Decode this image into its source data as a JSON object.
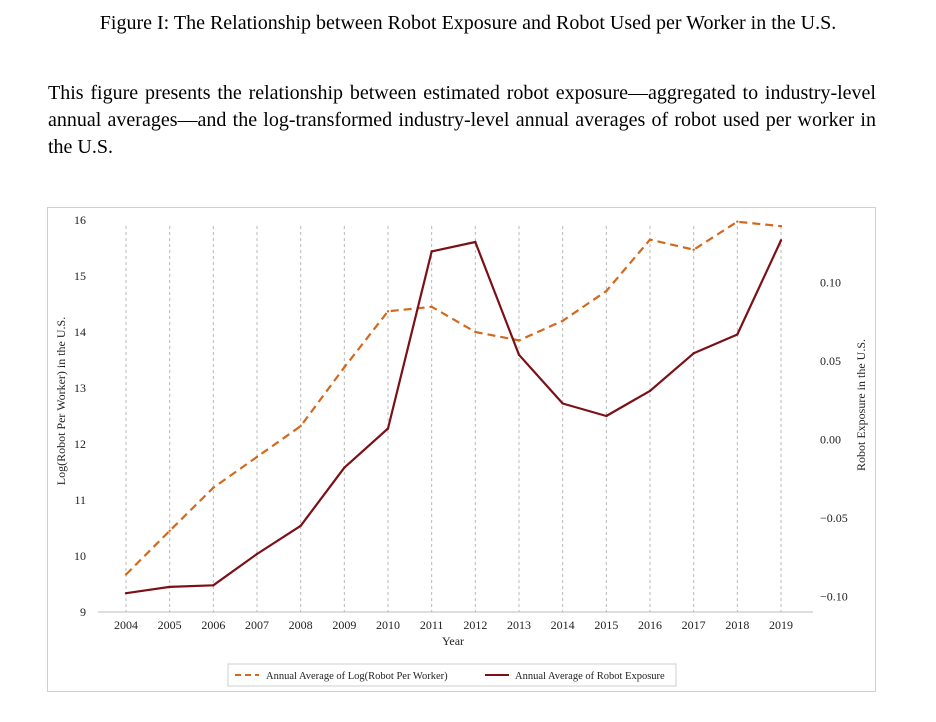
{
  "figure": {
    "title": "Figure I: The Relationship between Robot Exposure and Robot Used per Worker in the U.S.",
    "caption": "This figure presents the relationship between estimated robot exposure—aggregated to industry-level annual averages—and the log-transformed industry-level annual averages of robot used per worker in the U.S."
  },
  "chart_data": {
    "type": "line",
    "xlabel": "Year",
    "ylabel_left": "Log(Robot Per Worker) in the U.S.",
    "ylabel_right": "Robot Exposure in the U.S.",
    "x": [
      "2004",
      "2005",
      "2006",
      "2007",
      "2008",
      "2009",
      "2010",
      "2011",
      "2012",
      "2013",
      "2014",
      "2015",
      "2016",
      "2017",
      "2018",
      "2019"
    ],
    "ylim_left": [
      9,
      16
    ],
    "yticks_left": [
      "9",
      "10",
      "11",
      "12",
      "13",
      "14",
      "15",
      "16"
    ],
    "ylim_right": [
      -0.11,
      0.14
    ],
    "yticks_right": [
      {
        "value": -0.1,
        "label": "−0.10"
      },
      {
        "value": -0.05,
        "label": "−0.05"
      },
      {
        "value": 0.0,
        "label": "0.00"
      },
      {
        "value": 0.05,
        "label": "0.05"
      },
      {
        "value": 0.1,
        "label": "0.10"
      }
    ],
    "grid": "vertical-dashed",
    "legend_position": "bottom-center",
    "series": [
      {
        "name": "Annual Average of Log(Robot Per Worker)",
        "axis": "left",
        "style": "dashed",
        "color": "#d2691e",
        "values": [
          9.67,
          10.45,
          11.22,
          11.77,
          12.32,
          13.37,
          14.37,
          14.45,
          14.0,
          13.85,
          14.2,
          14.73,
          15.65,
          15.47,
          15.97,
          15.89
        ]
      },
      {
        "name": "Annual Average of Robot Exposure",
        "axis": "right",
        "style": "solid",
        "color": "#7b1016",
        "values": [
          -0.098,
          -0.094,
          -0.093,
          -0.073,
          -0.055,
          -0.018,
          0.007,
          0.12,
          0.126,
          0.054,
          0.023,
          0.015,
          0.031,
          0.055,
          0.067,
          0.127
        ]
      }
    ]
  }
}
